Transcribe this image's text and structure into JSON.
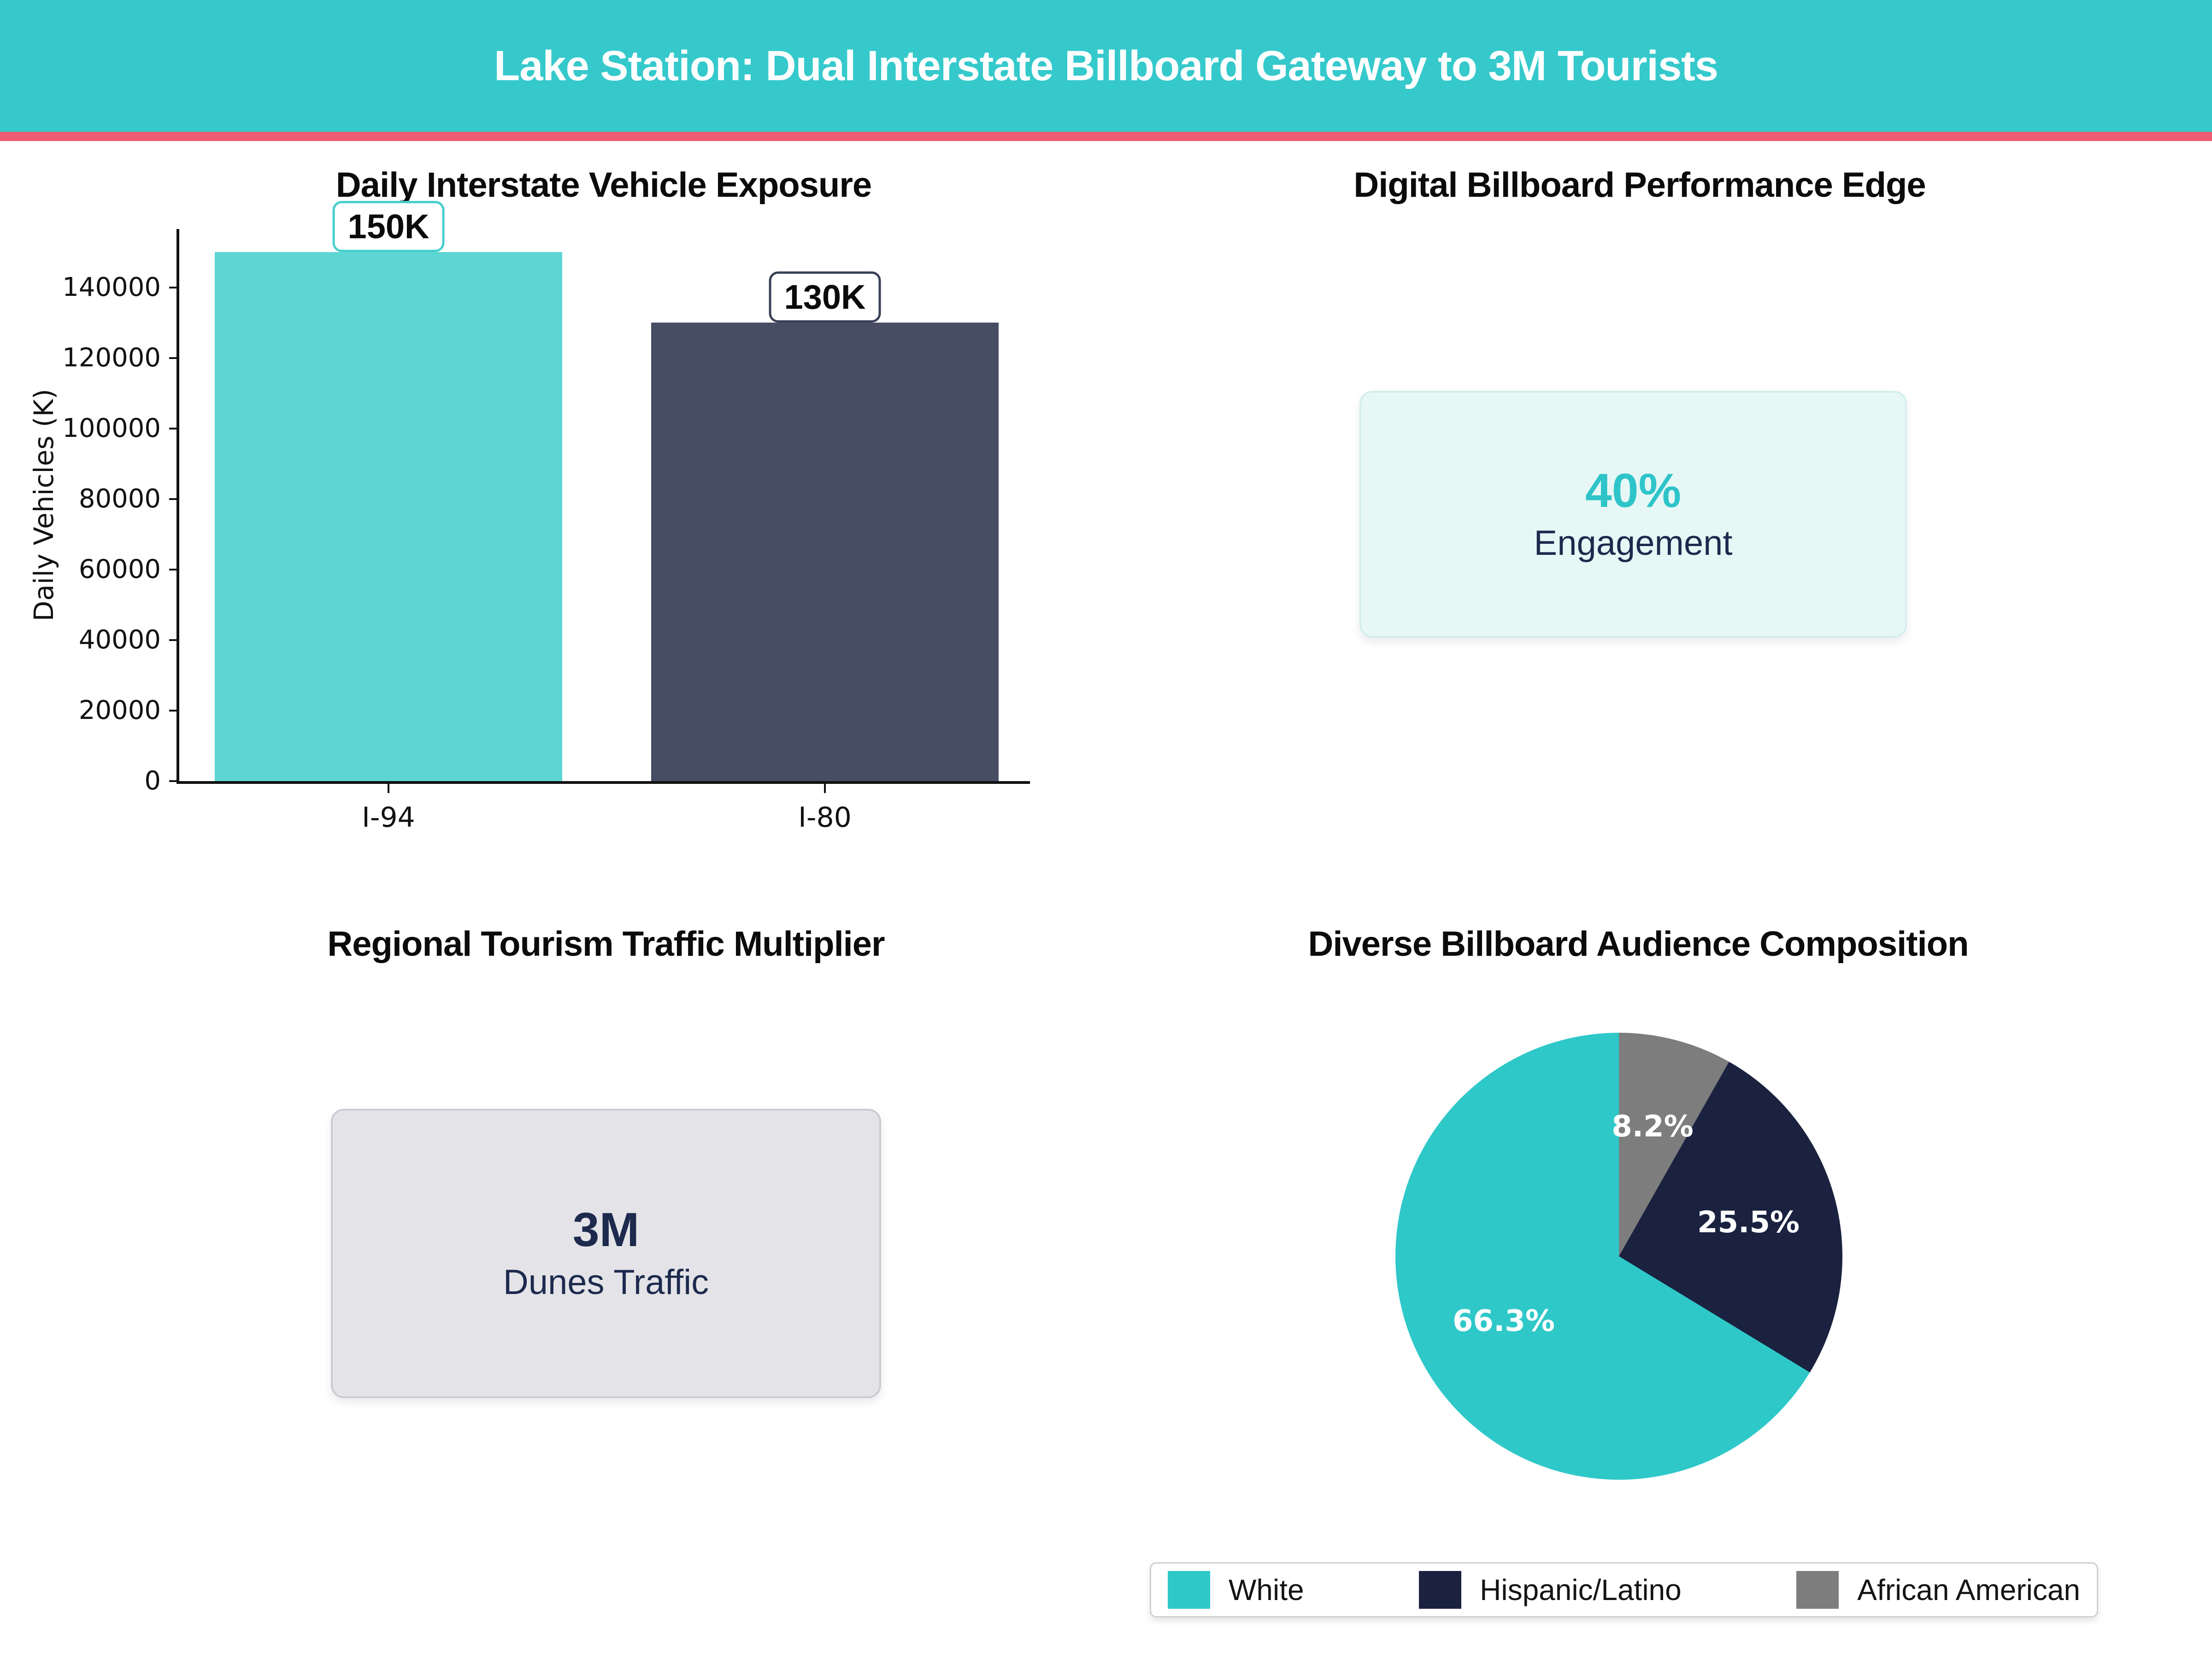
{
  "header": {
    "title": "Lake Station: Dual Interstate Billboard Gateway to 3M Tourists",
    "bar_color": "#35c9cc",
    "accent_line_color": "#ee5b72"
  },
  "stat_cards": {
    "engagement": {
      "title": "Digital Billboard Performance Edge",
      "value": "40%",
      "label": "Engagement",
      "value_color": "#2ec4c9",
      "card_bg": "#e7f7f5"
    },
    "tourism": {
      "title": "Regional Tourism Traffic Multiplier",
      "value": "3M",
      "label": "Dunes Traffic",
      "value_color": "#1d2a4e",
      "card_bg": "#e4e4e8"
    }
  },
  "chart_data": [
    {
      "type": "bar",
      "title": "Daily Interstate Vehicle Exposure",
      "categories": [
        "I-94",
        "I-80"
      ],
      "values": [
        150000,
        130000
      ],
      "bar_labels": [
        "150K",
        "130K"
      ],
      "bar_colors": [
        "#5cd5d3",
        "#474e63"
      ],
      "xlabel": "",
      "ylabel": "Daily Vehicles (K)",
      "ylim": [
        0,
        156000
      ],
      "yticks": [
        0,
        20000,
        40000,
        60000,
        80000,
        100000,
        120000,
        140000
      ],
      "grid": false,
      "legend_position": "none"
    },
    {
      "type": "pie",
      "title": "Diverse Billboard Audience Composition",
      "labels": [
        "White",
        "Hispanic/Latino",
        "African American"
      ],
      "values": [
        66.3,
        25.5,
        8.2
      ],
      "pct_labels": [
        "66.3%",
        "25.5%",
        "8.2%"
      ],
      "colors": [
        "#2fc8c9",
        "#1a2240",
        "#7d7d7d"
      ],
      "start_angle_deg": 90,
      "counterclock": true,
      "legend_position": "bottom"
    }
  ]
}
